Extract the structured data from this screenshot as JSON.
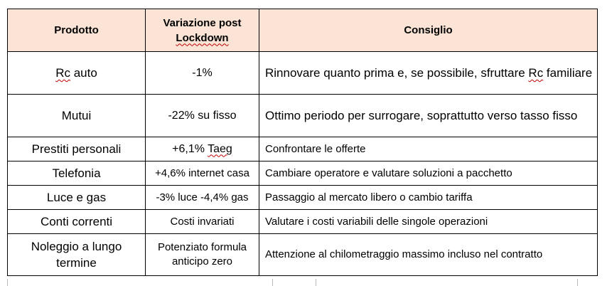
{
  "header": {
    "col1": "Prodotto",
    "col2_line1": "Variazione post",
    "col2_line2": "Lockdown",
    "col3": "Consiglio"
  },
  "rows": [
    {
      "product_pre": "",
      "product_spell": "Rc",
      "product_post": " auto",
      "change_pre": "-1%",
      "change_spell": "",
      "change_post": "",
      "advice_pre": "Rinnovare quanto prima e, se possibile, sfruttare ",
      "advice_spell": "Rc",
      "advice_post": " familiare"
    },
    {
      "product_pre": "Mutui",
      "product_spell": "",
      "product_post": "",
      "change_pre": "-22% su fisso",
      "change_spell": "",
      "change_post": "",
      "advice_pre": "Ottimo periodo per surrogare, soprattutto verso tasso fisso",
      "advice_spell": "",
      "advice_post": ""
    },
    {
      "product_pre": "Prestiti personali",
      "product_spell": "",
      "product_post": "",
      "change_pre": "+6,1% ",
      "change_spell": "Taeg",
      "change_post": "",
      "advice_pre": "Confrontare le offerte",
      "advice_spell": "",
      "advice_post": ""
    },
    {
      "product_pre": "Telefonia",
      "product_spell": "",
      "product_post": "",
      "change_pre": "+4,6% internet casa",
      "change_spell": "",
      "change_post": "",
      "advice_pre": "Cambiare operatore e valutare soluzioni a pacchetto",
      "advice_spell": "",
      "advice_post": ""
    },
    {
      "product_pre": "Luce e gas",
      "product_spell": "",
      "product_post": "",
      "change_pre": "-3% luce -4,4% gas",
      "change_spell": "",
      "change_post": "",
      "advice_pre": "Passaggio al mercato libero o cambio tariffa",
      "advice_spell": "",
      "advice_post": ""
    },
    {
      "product_pre": "Conti correnti",
      "product_spell": "",
      "product_post": "",
      "change_pre": "Costi invariati",
      "change_spell": "",
      "change_post": "",
      "advice_pre": "Valutare i costi variabili delle singole operazioni",
      "advice_spell": "",
      "advice_post": ""
    },
    {
      "product_pre": "Noleggio a lungo termine",
      "product_spell": "",
      "product_post": "",
      "change_pre": "Potenziato formula anticipo zero",
      "change_spell": "",
      "change_post": "",
      "advice_pre": "Attenzione al chilometraggio massimo incluso nel contratto",
      "advice_spell": "",
      "advice_post": ""
    }
  ]
}
